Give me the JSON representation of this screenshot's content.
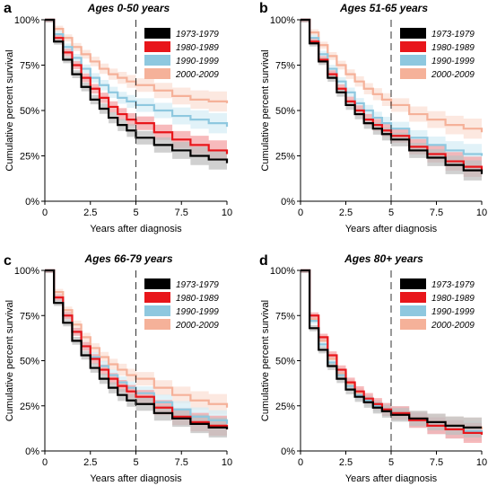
{
  "chart_data": [
    {
      "type": "line",
      "panel": "a",
      "title": "Ages 0-50 years",
      "xlabel": "Years after diagnosis",
      "ylabel": "Cumulative percent survival",
      "xlim": [
        0,
        10
      ],
      "ylim": [
        0,
        100
      ],
      "x_ticks": [
        "0",
        "2.5",
        "5",
        "7.5",
        "10"
      ],
      "y_ticks": [
        "0%",
        "25%",
        "50%",
        "75%",
        "100%"
      ],
      "reference_line_x": 5,
      "grid": false,
      "legend_position": "top-right",
      "x": [
        0,
        0.5,
        1,
        1.5,
        2,
        2.5,
        3,
        3.5,
        4,
        4.5,
        5,
        6,
        7,
        8,
        9,
        10
      ],
      "series": [
        {
          "name": "1973-1979",
          "color": "#000000",
          "band": "#c0c0c0",
          "values": [
            100,
            88,
            78,
            70,
            63,
            56,
            51,
            46,
            42,
            39,
            35,
            31,
            28,
            25,
            23,
            21
          ]
        },
        {
          "name": "1980-1989",
          "color": "#e8161b",
          "band": "#f4a3a5",
          "values": [
            100,
            90,
            82,
            75,
            68,
            62,
            57,
            52,
            48,
            45,
            43,
            38,
            34,
            31,
            28,
            26
          ]
        },
        {
          "name": "1990-1999",
          "color": "#8ec8df",
          "band": "#d7edf5",
          "values": [
            100,
            92,
            85,
            79,
            73,
            68,
            64,
            60,
            57,
            55,
            53,
            50,
            47,
            45,
            43,
            41
          ]
        },
        {
          "name": "2000-2009",
          "color": "#f5b199",
          "band": "#fbe0d5",
          "values": [
            100,
            95,
            90,
            85,
            81,
            77,
            73,
            70,
            68,
            66,
            64,
            61,
            58,
            56,
            55,
            54
          ]
        }
      ]
    },
    {
      "type": "line",
      "panel": "b",
      "title": "Ages 51-65 years",
      "xlabel": "Years after diagnosis",
      "ylabel": "Cumulative percent survival",
      "xlim": [
        0,
        10
      ],
      "ylim": [
        0,
        100
      ],
      "x_ticks": [
        "0",
        "2.5",
        "5",
        "7.5",
        "10"
      ],
      "y_ticks": [
        "0%",
        "25%",
        "50%",
        "75%",
        "100%"
      ],
      "reference_line_x": 5,
      "grid": false,
      "legend_position": "top-right",
      "x": [
        0,
        0.5,
        1,
        1.5,
        2,
        2.5,
        3,
        3.5,
        4,
        4.5,
        5,
        6,
        7,
        8,
        9,
        10
      ],
      "series": [
        {
          "name": "1973-1979",
          "color": "#000000",
          "band": "#c0c0c0",
          "values": [
            100,
            87,
            77,
            68,
            60,
            53,
            48,
            43,
            40,
            37,
            34,
            28,
            24,
            20,
            17,
            15
          ]
        },
        {
          "name": "1980-1989",
          "color": "#e8161b",
          "band": "#f4a3a5",
          "values": [
            100,
            88,
            78,
            70,
            62,
            55,
            50,
            45,
            42,
            39,
            36,
            30,
            26,
            22,
            19,
            17
          ]
        },
        {
          "name": "1990-1999",
          "color": "#8ec8df",
          "band": "#d7edf5",
          "values": [
            100,
            90,
            81,
            73,
            66,
            60,
            54,
            50,
            46,
            43,
            40,
            35,
            31,
            28,
            26,
            25
          ]
        },
        {
          "name": "2000-2009",
          "color": "#f5b199",
          "band": "#fbe0d5",
          "values": [
            100,
            93,
            86,
            80,
            75,
            70,
            66,
            62,
            59,
            56,
            53,
            48,
            45,
            42,
            40,
            38
          ]
        }
      ]
    },
    {
      "type": "line",
      "panel": "c",
      "title": "Ages 66-79 years",
      "xlabel": "Years after diagnosis",
      "ylabel": "Cumulative percent survival",
      "xlim": [
        0,
        10
      ],
      "ylim": [
        0,
        100
      ],
      "x_ticks": [
        "0",
        "2.5",
        "5",
        "7.5",
        "10"
      ],
      "y_ticks": [
        "0%",
        "25%",
        "50%",
        "75%",
        "100%"
      ],
      "reference_line_x": 5,
      "grid": false,
      "legend_position": "top-right",
      "x": [
        0,
        0.5,
        1,
        1.5,
        2,
        2.5,
        3,
        3.5,
        4,
        4.5,
        5,
        6,
        7,
        8,
        9,
        10
      ],
      "series": [
        {
          "name": "1973-1979",
          "color": "#000000",
          "band": "#c0c0c0",
          "values": [
            100,
            82,
            71,
            61,
            53,
            46,
            40,
            35,
            31,
            28,
            26,
            21,
            18,
            15,
            13,
            12
          ]
        },
        {
          "name": "1980-1989",
          "color": "#e8161b",
          "band": "#f4a3a5",
          "values": [
            100,
            85,
            75,
            66,
            58,
            51,
            45,
            40,
            36,
            33,
            30,
            24,
            19,
            16,
            14,
            12
          ]
        },
        {
          "name": "1990-1999",
          "color": "#8ec8df",
          "band": "#d7edf5",
          "values": [
            100,
            85,
            75,
            66,
            58,
            52,
            47,
            42,
            38,
            35,
            32,
            27,
            23,
            19,
            17,
            15
          ]
        },
        {
          "name": "2000-2009",
          "color": "#f5b199",
          "band": "#fbe0d5",
          "values": [
            100,
            88,
            78,
            70,
            63,
            57,
            52,
            48,
            45,
            42,
            40,
            35,
            31,
            28,
            26,
            24
          ]
        }
      ]
    },
    {
      "type": "line",
      "panel": "d",
      "title": "Ages 80+ years",
      "xlabel": "Years after diagnosis",
      "ylabel": "Cumulative percent survival",
      "xlim": [
        0,
        10
      ],
      "ylim": [
        0,
        100
      ],
      "x_ticks": [
        "0",
        "2.5",
        "5",
        "7.5",
        "10"
      ],
      "y_ticks": [
        "0%",
        "25%",
        "50%",
        "75%",
        "100%"
      ],
      "reference_line_x": 5,
      "grid": false,
      "legend_position": "top-right",
      "x": [
        0,
        0.5,
        1,
        1.5,
        2,
        2.5,
        3,
        3.5,
        4,
        4.5,
        5,
        6,
        7,
        8,
        9,
        10
      ],
      "series": [
        {
          "name": "1973-1979",
          "color": "#000000",
          "band": "#c0c0c0",
          "values": [
            100,
            68,
            56,
            47,
            40,
            34,
            30,
            27,
            24,
            22,
            20,
            18,
            16,
            14,
            13,
            13
          ]
        },
        {
          "name": "1980-1989",
          "color": "#e8161b",
          "band": "#f4a3a5",
          "values": [
            100,
            75,
            63,
            53,
            45,
            38,
            33,
            29,
            26,
            23,
            21,
            17,
            14,
            12,
            10,
            9
          ]
        },
        {
          "name": "1990-1999",
          "color": "#8ec8df",
          "band": "#d7edf5",
          "values": [
            100,
            72,
            59,
            49,
            42,
            36,
            31,
            28,
            25,
            23,
            21,
            17,
            14,
            12,
            11,
            10
          ]
        },
        {
          "name": "2000-2009",
          "color": "#f5b199",
          "band": "#fbe0d5",
          "values": [
            100,
            73,
            61,
            51,
            43,
            37,
            32,
            28,
            25,
            23,
            21,
            18,
            16,
            14,
            13,
            12
          ]
        }
      ]
    }
  ]
}
